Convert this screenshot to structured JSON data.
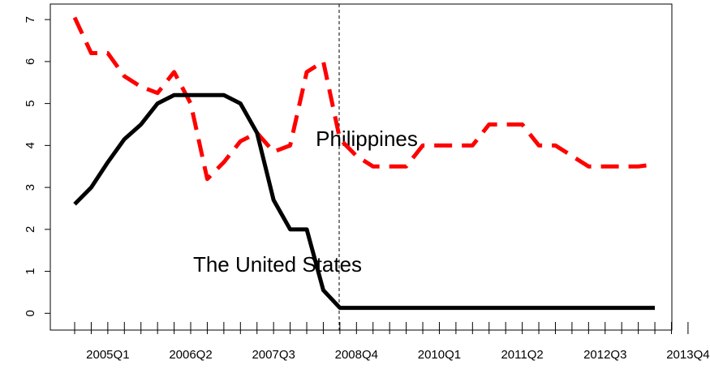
{
  "chart_data": {
    "type": "line",
    "categories": [
      null,
      null,
      "2005Q1",
      null,
      null,
      null,
      null,
      "2006Q2",
      null,
      null,
      null,
      null,
      "2007Q3",
      null,
      null,
      null,
      null,
      "2008Q4",
      null,
      null,
      null,
      null,
      "2010Q1",
      null,
      null,
      null,
      null,
      "2011Q2",
      null,
      null,
      null,
      null,
      "2012Q3",
      null,
      null,
      null,
      null,
      "2013Q4"
    ],
    "series": [
      {
        "name": "Philippines",
        "color": "#ff0000",
        "dash": true,
        "values": [
          7.05,
          6.2,
          6.2,
          5.65,
          5.4,
          5.25,
          5.75,
          5.0,
          3.2,
          3.6,
          4.1,
          4.3,
          3.85,
          4.0,
          5.75,
          6.0,
          4.15,
          3.75,
          3.5,
          3.5,
          3.5,
          4.0,
          4.0,
          4.0,
          4.0,
          4.5,
          4.5,
          4.5,
          4.0,
          4.0,
          3.75,
          3.5,
          3.5,
          3.5,
          3.5,
          3.55,
          null,
          null
        ]
      },
      {
        "name": "The United States",
        "color": "#000000",
        "dash": false,
        "values": [
          2.6,
          3.0,
          3.6,
          4.15,
          4.5,
          5.0,
          5.2,
          5.2,
          5.2,
          5.2,
          5.0,
          4.3,
          2.7,
          2.0,
          2.0,
          0.55,
          0.13,
          0.13,
          0.13,
          0.13,
          0.13,
          0.13,
          0.13,
          0.13,
          0.13,
          0.13,
          0.13,
          0.13,
          0.13,
          0.13,
          0.13,
          0.13,
          0.13,
          0.13,
          0.13,
          0.13,
          null,
          null
        ]
      }
    ],
    "ylim": [
      -0.4,
      7.37
    ],
    "yticks": [
      0,
      1,
      2,
      3,
      4,
      5,
      6,
      7
    ]
  }
}
